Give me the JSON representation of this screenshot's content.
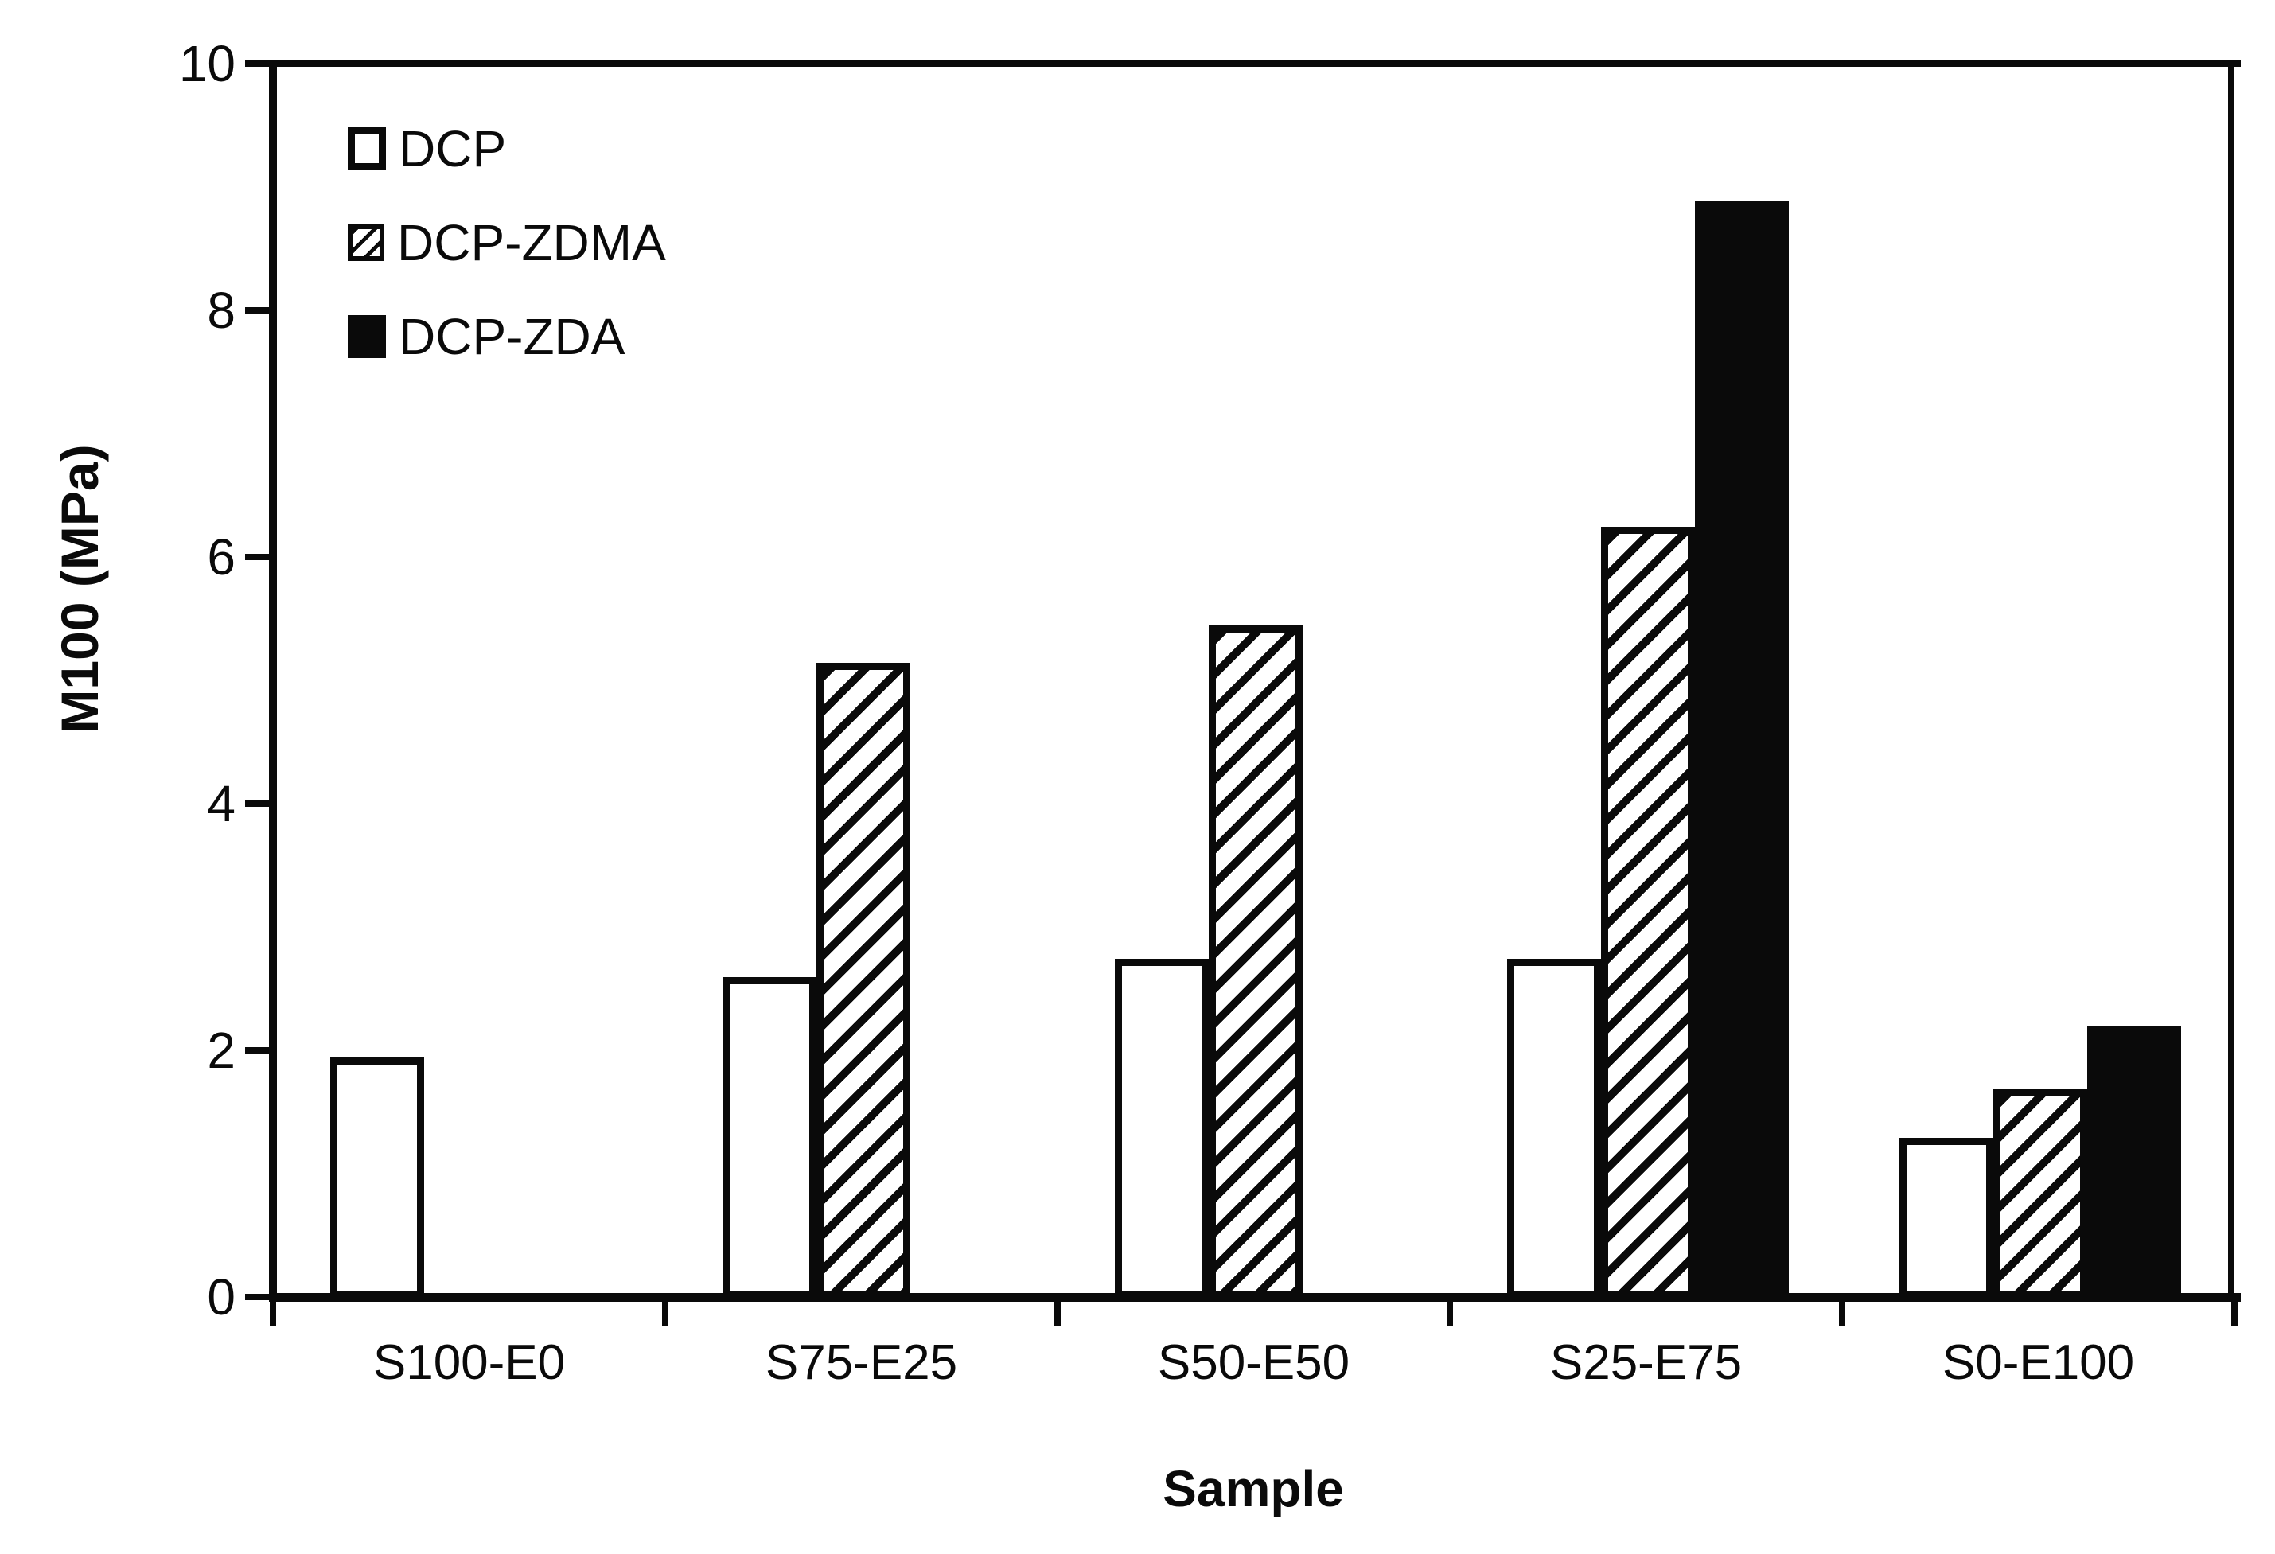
{
  "chart_data": {
    "type": "bar",
    "xlabel": "Sample",
    "ylabel": "M100 (MPa)",
    "ylim": [
      0,
      10
    ],
    "yticks": [
      0,
      2,
      4,
      6,
      8,
      10
    ],
    "categories": [
      "S100-E0",
      "S75-E25",
      "S50-E50",
      "S25-E75",
      "S0-E100"
    ],
    "series": [
      {
        "name": "DCP",
        "style": "white",
        "values": [
          1.95,
          2.6,
          2.75,
          2.75,
          1.3
        ]
      },
      {
        "name": "DCP-ZDMA",
        "style": "hatched",
        "values": [
          null,
          5.15,
          5.45,
          6.25,
          1.7
        ]
      },
      {
        "name": "DCP-ZDA",
        "style": "black",
        "values": [
          null,
          null,
          null,
          8.9,
          2.2
        ]
      }
    ],
    "legend_position": "top-left",
    "grid": false
  },
  "colors": {
    "ink": "#0a0a0a",
    "background": "#ffffff"
  }
}
